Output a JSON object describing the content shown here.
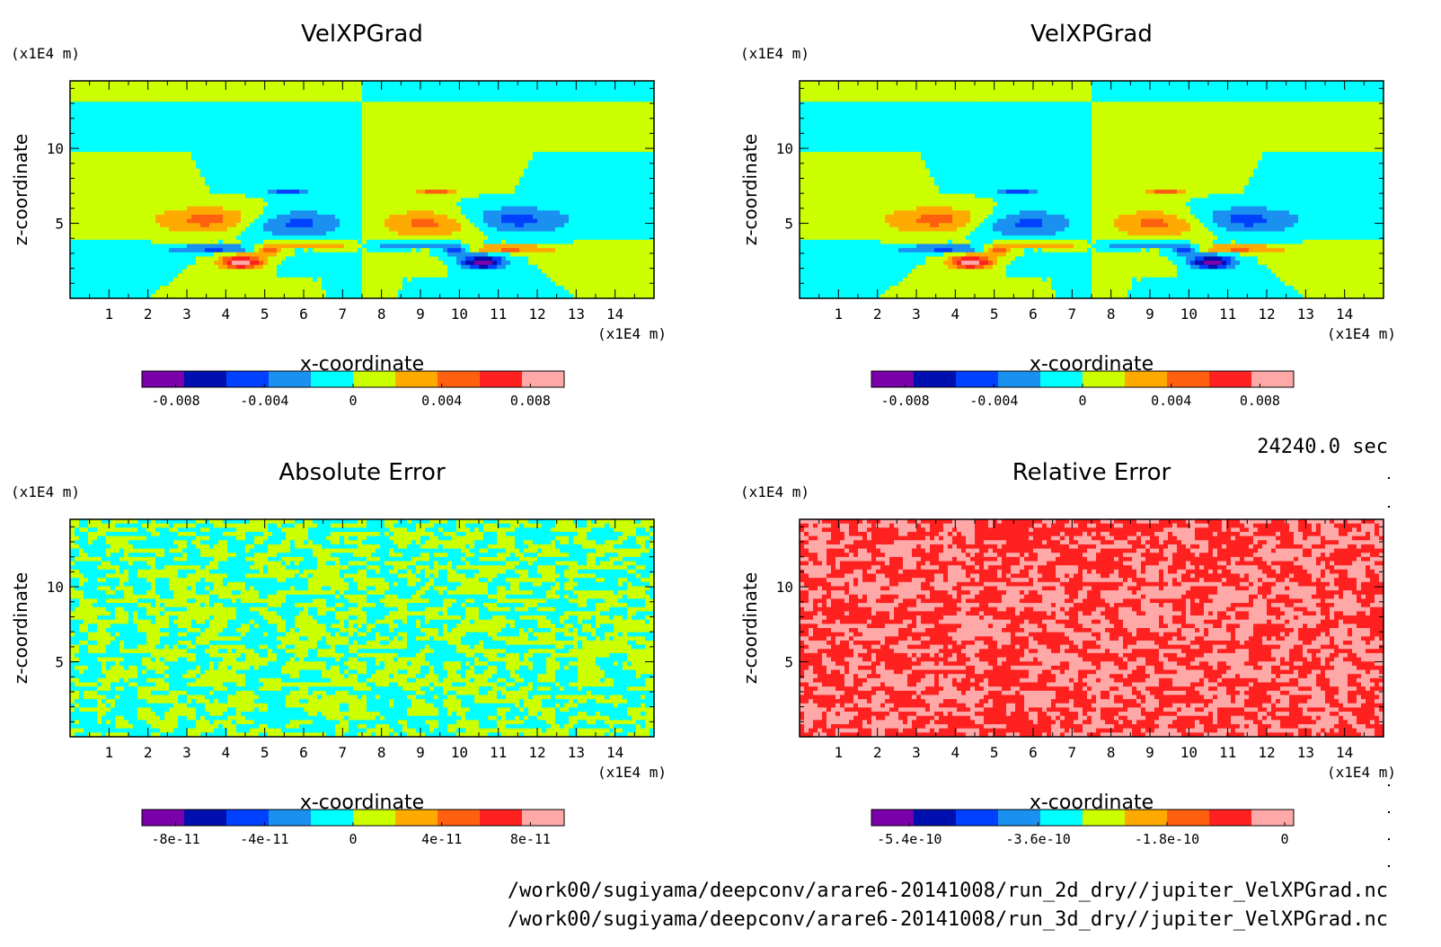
{
  "footer": {
    "time": "24240.0 sec",
    "files": [
      "/work00/sugiyama/deepconv/arare6-20141008/run_2d_dry//jupiter_VelXPGrad.nc",
      "/work00/sugiyama/deepconv/arare6-20141008/run_3d_dry//jupiter_VelXPGrad.nc"
    ]
  },
  "chart_data": [
    {
      "type": "heatmap",
      "title": "VelXPGrad",
      "xlabel": "x-coordinate",
      "ylabel": "z-coordinate",
      "x_unit": "(x1E4 m)",
      "y_unit": "(x1E4 m)",
      "xlim": [
        0,
        15
      ],
      "ylim": [
        0,
        14.5
      ],
      "xticks": [
        "1",
        "2",
        "3",
        "4",
        "5",
        "6",
        "7",
        "8",
        "9",
        "10",
        "11",
        "12",
        "13",
        "14"
      ],
      "yticks": [
        "5",
        "10"
      ],
      "pattern": "field",
      "colorbar": {
        "colors": [
          "#7a00aa",
          "#0010b0",
          "#0040ff",
          "#1a90f0",
          "#00ffff",
          "#ccff00",
          "#ffaa00",
          "#ff6010",
          "#ff2020",
          "#ffa8a8"
        ],
        "labels": [
          "-0.008",
          "-0.004",
          "0",
          "0.004",
          "0.008"
        ]
      }
    },
    {
      "type": "heatmap",
      "title": "VelXPGrad",
      "xlabel": "x-coordinate",
      "ylabel": "z-coordinate",
      "x_unit": "(x1E4 m)",
      "y_unit": "(x1E4 m)",
      "xlim": [
        0,
        15
      ],
      "ylim": [
        0,
        14.5
      ],
      "xticks": [
        "1",
        "2",
        "3",
        "4",
        "5",
        "6",
        "7",
        "8",
        "9",
        "10",
        "11",
        "12",
        "13",
        "14"
      ],
      "yticks": [
        "5",
        "10"
      ],
      "pattern": "field",
      "colorbar": {
        "colors": [
          "#7a00aa",
          "#0010b0",
          "#0040ff",
          "#1a90f0",
          "#00ffff",
          "#ccff00",
          "#ffaa00",
          "#ff6010",
          "#ff2020",
          "#ffa8a8"
        ],
        "labels": [
          "-0.008",
          "-0.004",
          "0",
          "0.004",
          "0.008"
        ]
      }
    },
    {
      "type": "heatmap",
      "title": "Absolute Error",
      "xlabel": "x-coordinate",
      "ylabel": "z-coordinate",
      "x_unit": "(x1E4 m)",
      "y_unit": "(x1E4 m)",
      "xlim": [
        0,
        15
      ],
      "ylim": [
        0,
        14.5
      ],
      "xticks": [
        "1",
        "2",
        "3",
        "4",
        "5",
        "6",
        "7",
        "8",
        "9",
        "10",
        "11",
        "12",
        "13",
        "14"
      ],
      "yticks": [
        "5",
        "10"
      ],
      "pattern": "noise",
      "colorbar": {
        "colors": [
          "#7a00aa",
          "#0010b0",
          "#0040ff",
          "#1a90f0",
          "#00ffff",
          "#ccff00",
          "#ffaa00",
          "#ff6010",
          "#ff2020",
          "#ffa8a8"
        ],
        "labels": [
          "-8e-11",
          "-4e-11",
          "0",
          "4e-11",
          "8e-11"
        ]
      }
    },
    {
      "type": "heatmap",
      "title": "Relative Error",
      "xlabel": "x-coordinate",
      "ylabel": "z-coordinate",
      "x_unit": "(x1E4 m)",
      "y_unit": "(x1E4 m)",
      "xlim": [
        0,
        15
      ],
      "ylim": [
        0,
        14.5
      ],
      "xticks": [
        "1",
        "2",
        "3",
        "4",
        "5",
        "6",
        "7",
        "8",
        "9",
        "10",
        "11",
        "12",
        "13",
        "14"
      ],
      "yticks": [
        "5",
        "10"
      ],
      "pattern": "relnoise",
      "colorbar": {
        "colors": [
          "#7a00aa",
          "#0010b0",
          "#0040ff",
          "#1a90f0",
          "#00ffff",
          "#ccff00",
          "#ffaa00",
          "#ff6010",
          "#ff2020",
          "#ffa8a8"
        ],
        "labels": [
          "-5.4e-10",
          "-3.6e-10",
          "-1.8e-10",
          "0"
        ]
      }
    }
  ]
}
